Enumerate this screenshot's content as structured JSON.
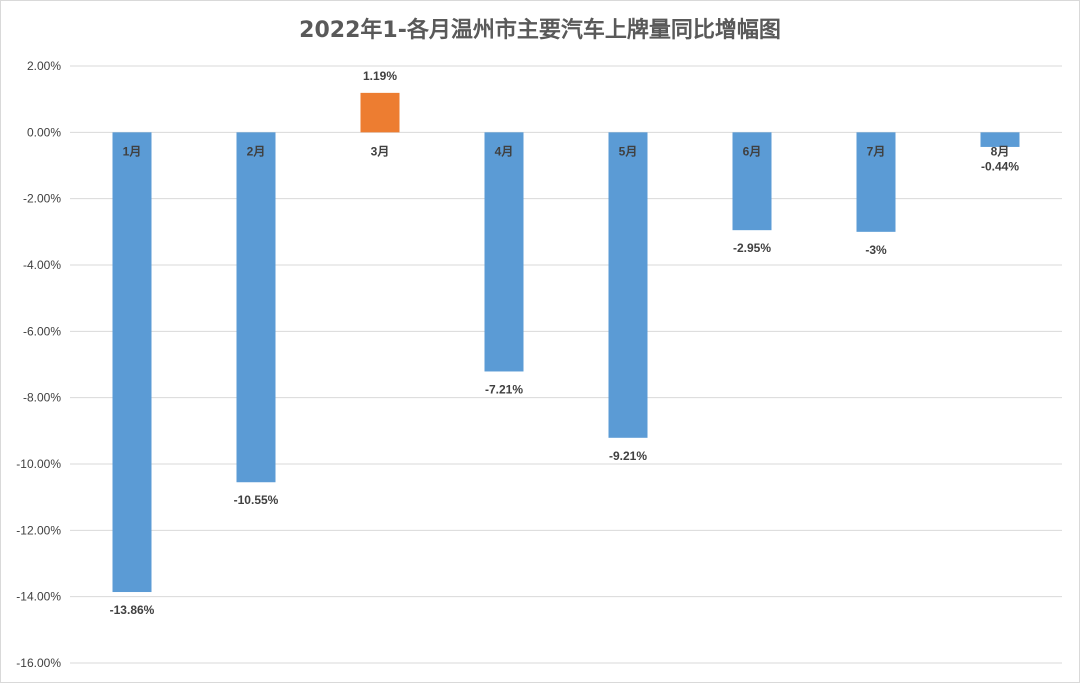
{
  "chart_data": {
    "type": "bar",
    "title": "2022年1-各月温州市主要汽车上牌量同比增幅图",
    "categories": [
      "1月",
      "2月",
      "3月",
      "4月",
      "5月",
      "6月",
      "7月",
      "8月"
    ],
    "values": [
      -13.86,
      -10.55,
      1.19,
      -7.21,
      -9.21,
      -2.95,
      -3.0,
      -0.44
    ],
    "data_labels": [
      "-13.86%",
      "-10.55%",
      "1.19%",
      "-7.21%",
      "-9.21%",
      "-2.95%",
      "-3%",
      "-0.44%"
    ],
    "y_ticks": [
      2,
      0,
      -2,
      -4,
      -6,
      -8,
      -10,
      -12,
      -14,
      -16
    ],
    "y_tick_labels": [
      "2.00%",
      "0.00%",
      "-2.00%",
      "-4.00%",
      "-6.00%",
      "-8.00%",
      "-10.00%",
      "-12.00%",
      "-14.00%",
      "-16.00%"
    ],
    "ylim": [
      -16,
      2
    ],
    "grid": true,
    "colors": {
      "negative": "#5b9bd5",
      "positive": "#ed7d31",
      "grid": "#d9d9d9",
      "text": "#404040"
    }
  }
}
